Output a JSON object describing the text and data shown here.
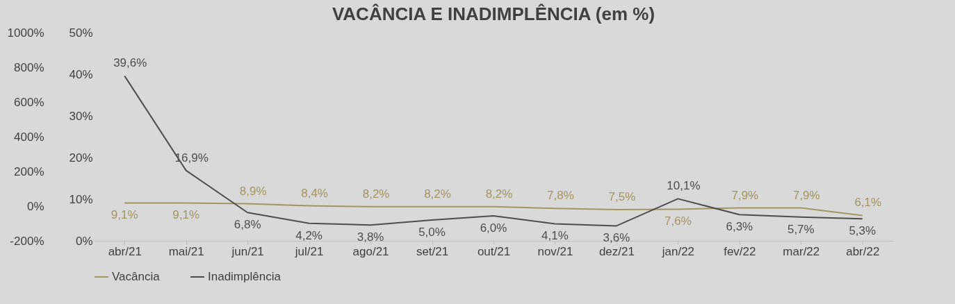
{
  "chart_data": {
    "type": "line",
    "title": "VACÂNCIA E INADIMPLÊNCIA (em %)",
    "categories": [
      "abr/21",
      "mai/21",
      "jun/21",
      "jul/21",
      "ago/21",
      "set/21",
      "out/21",
      "nov/21",
      "dez/21",
      "jan/22",
      "fev/22",
      "mar/22",
      "abr/22"
    ],
    "series": [
      {
        "name": "Vacância",
        "color": "#a39461",
        "values": [
          9.1,
          9.1,
          8.9,
          8.4,
          8.2,
          8.2,
          8.2,
          7.8,
          7.5,
          7.6,
          7.9,
          7.9,
          6.1
        ],
        "value_labels": [
          "9,1%",
          "9,1%",
          "8,9%",
          "8,4%",
          "8,2%",
          "8,2%",
          "8,2%",
          "7,8%",
          "7,5%",
          "7,6%",
          "7,9%",
          "7,9%",
          "6,1%"
        ]
      },
      {
        "name": "Inadimplência",
        "color": "#4d4d4d",
        "values": [
          39.6,
          16.9,
          6.8,
          4.2,
          3.8,
          5.0,
          6.0,
          4.1,
          3.6,
          10.1,
          6.3,
          5.7,
          5.3
        ],
        "value_labels": [
          "39,6%",
          "16,9%",
          "6,8%",
          "4,2%",
          "3,8%",
          "5,0%",
          "6,0%",
          "4,1%",
          "3,6%",
          "10,1%",
          "6,3%",
          "5,7%",
          "5,3%"
        ]
      }
    ],
    "ylim": [
      0,
      50
    ],
    "yticks": [
      {
        "value": 0,
        "label": "0%"
      },
      {
        "value": 10,
        "label": "10%"
      },
      {
        "value": 20,
        "label": "20%"
      },
      {
        "value": 30,
        "label": "30%"
      },
      {
        "value": 40,
        "label": "40%"
      },
      {
        "value": 50,
        "label": "50%"
      }
    ],
    "y2lim": [
      -200,
      1000
    ],
    "y2ticks": [
      {
        "value": -200,
        "label": "-200%"
      },
      {
        "value": 0,
        "label": "0%"
      },
      {
        "value": 200,
        "label": "200%"
      },
      {
        "value": 400,
        "label": "400%"
      },
      {
        "value": 600,
        "label": "600%"
      },
      {
        "value": 800,
        "label": "800%"
      },
      {
        "value": 1000,
        "label": "1000%"
      }
    ],
    "legend": "bottom"
  }
}
